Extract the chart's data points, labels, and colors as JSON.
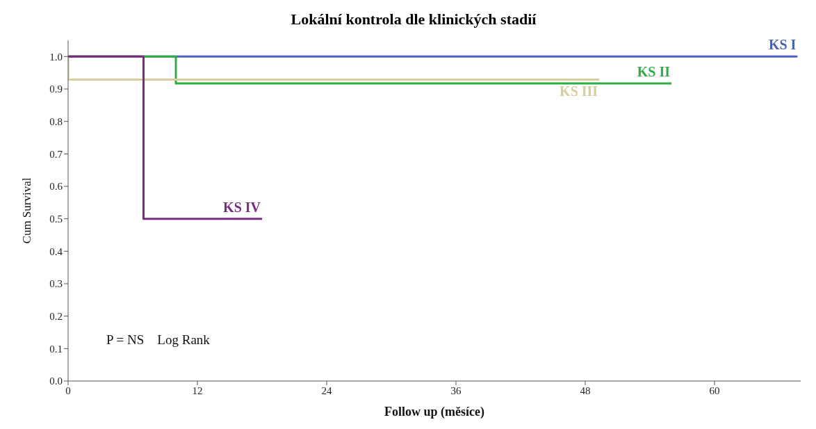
{
  "chart_data": {
    "type": "step",
    "title": "Lokální kontrola dle klinických stadií",
    "xlabel": "Follow up (měsíce)",
    "ylabel": "Cum Survival",
    "xlim": [
      0,
      68
    ],
    "xticks": [
      0,
      12,
      24,
      36,
      48,
      60
    ],
    "ylim": [
      0,
      1.05
    ],
    "yticks": [
      {
        "value": 0,
        "label": "0.0"
      },
      {
        "value": 0.1,
        "label": "0.1"
      },
      {
        "value": 0.2,
        "label": "0.2"
      },
      {
        "value": 0.3,
        "label": "0.3"
      },
      {
        "value": 0.4,
        "label": "0.4"
      },
      {
        "value": 0.5,
        "label": "0.5"
      },
      {
        "value": 0.6,
        "label": "0.6"
      },
      {
        "value": 0.7,
        "label": "0.7"
      },
      {
        "value": 0.8,
        "label": "0.8"
      },
      {
        "value": 0.9,
        "label": "0.9"
      },
      {
        "value": 1,
        "label": "1.0"
      }
    ],
    "grid": false,
    "legend": false,
    "line_style": "solid",
    "series": [
      {
        "name": "KS I",
        "color": "#4a60b8",
        "x": [
          0,
          67.7
        ],
        "values": [
          1,
          1
        ]
      },
      {
        "name": "KS II",
        "color": "#2fad45",
        "x": [
          0,
          10,
          56
        ],
        "values": [
          1,
          0.917,
          0.917
        ]
      },
      {
        "name": "KS III",
        "color": "#d8cc9a",
        "x": [
          0,
          0,
          49.3
        ],
        "values": [
          1,
          0.929,
          0.929
        ]
      },
      {
        "name": "KS IV",
        "color": "#7b2a80",
        "x": [
          0,
          7,
          18
        ],
        "values": [
          1,
          0.5,
          0.5
        ]
      }
    ],
    "annotations": [
      "P = NS    Log Rank"
    ]
  }
}
